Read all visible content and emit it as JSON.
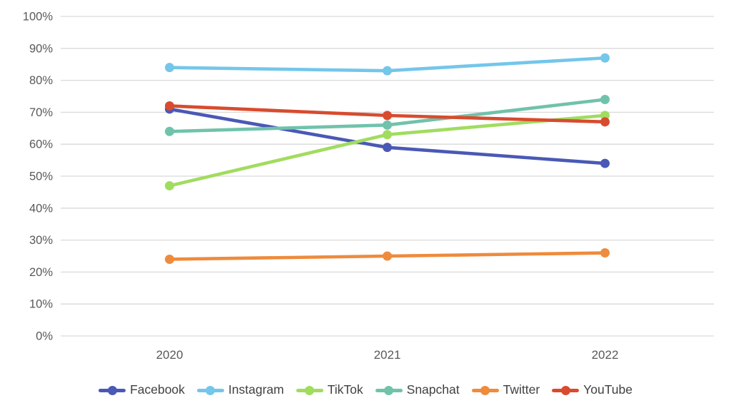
{
  "chart_data": {
    "type": "line",
    "title": "",
    "x": [
      "2020",
      "2021",
      "2022"
    ],
    "series": [
      {
        "name": "Facebook",
        "color": "#4a59b5",
        "values": [
          71,
          59,
          54
        ]
      },
      {
        "name": "Instagram",
        "color": "#74c6ea",
        "values": [
          84,
          83,
          87
        ]
      },
      {
        "name": "TikTok",
        "color": "#a1dc5f",
        "values": [
          47,
          63,
          69
        ]
      },
      {
        "name": "Snapchat",
        "color": "#70c2ab",
        "values": [
          64,
          66,
          74
        ]
      },
      {
        "name": "Twitter",
        "color": "#ee8b3d",
        "values": [
          24,
          25,
          26
        ]
      },
      {
        "name": "YouTube",
        "color": "#d84b2e",
        "values": [
          72,
          69,
          67
        ]
      }
    ],
    "y_axis": {
      "min": 0,
      "max": 100,
      "step": 10,
      "tick_labels": [
        "0%",
        "10%",
        "20%",
        "30%",
        "40%",
        "50%",
        "60%",
        "70%",
        "80%",
        "90%",
        "100%"
      ]
    },
    "legend_position": "bottom",
    "grid": true,
    "marker": "circle",
    "colors": {
      "grid_line": "#d9d9d9",
      "axis_text": "#595959",
      "legend_text": "#404040",
      "background": "#ffffff"
    }
  }
}
